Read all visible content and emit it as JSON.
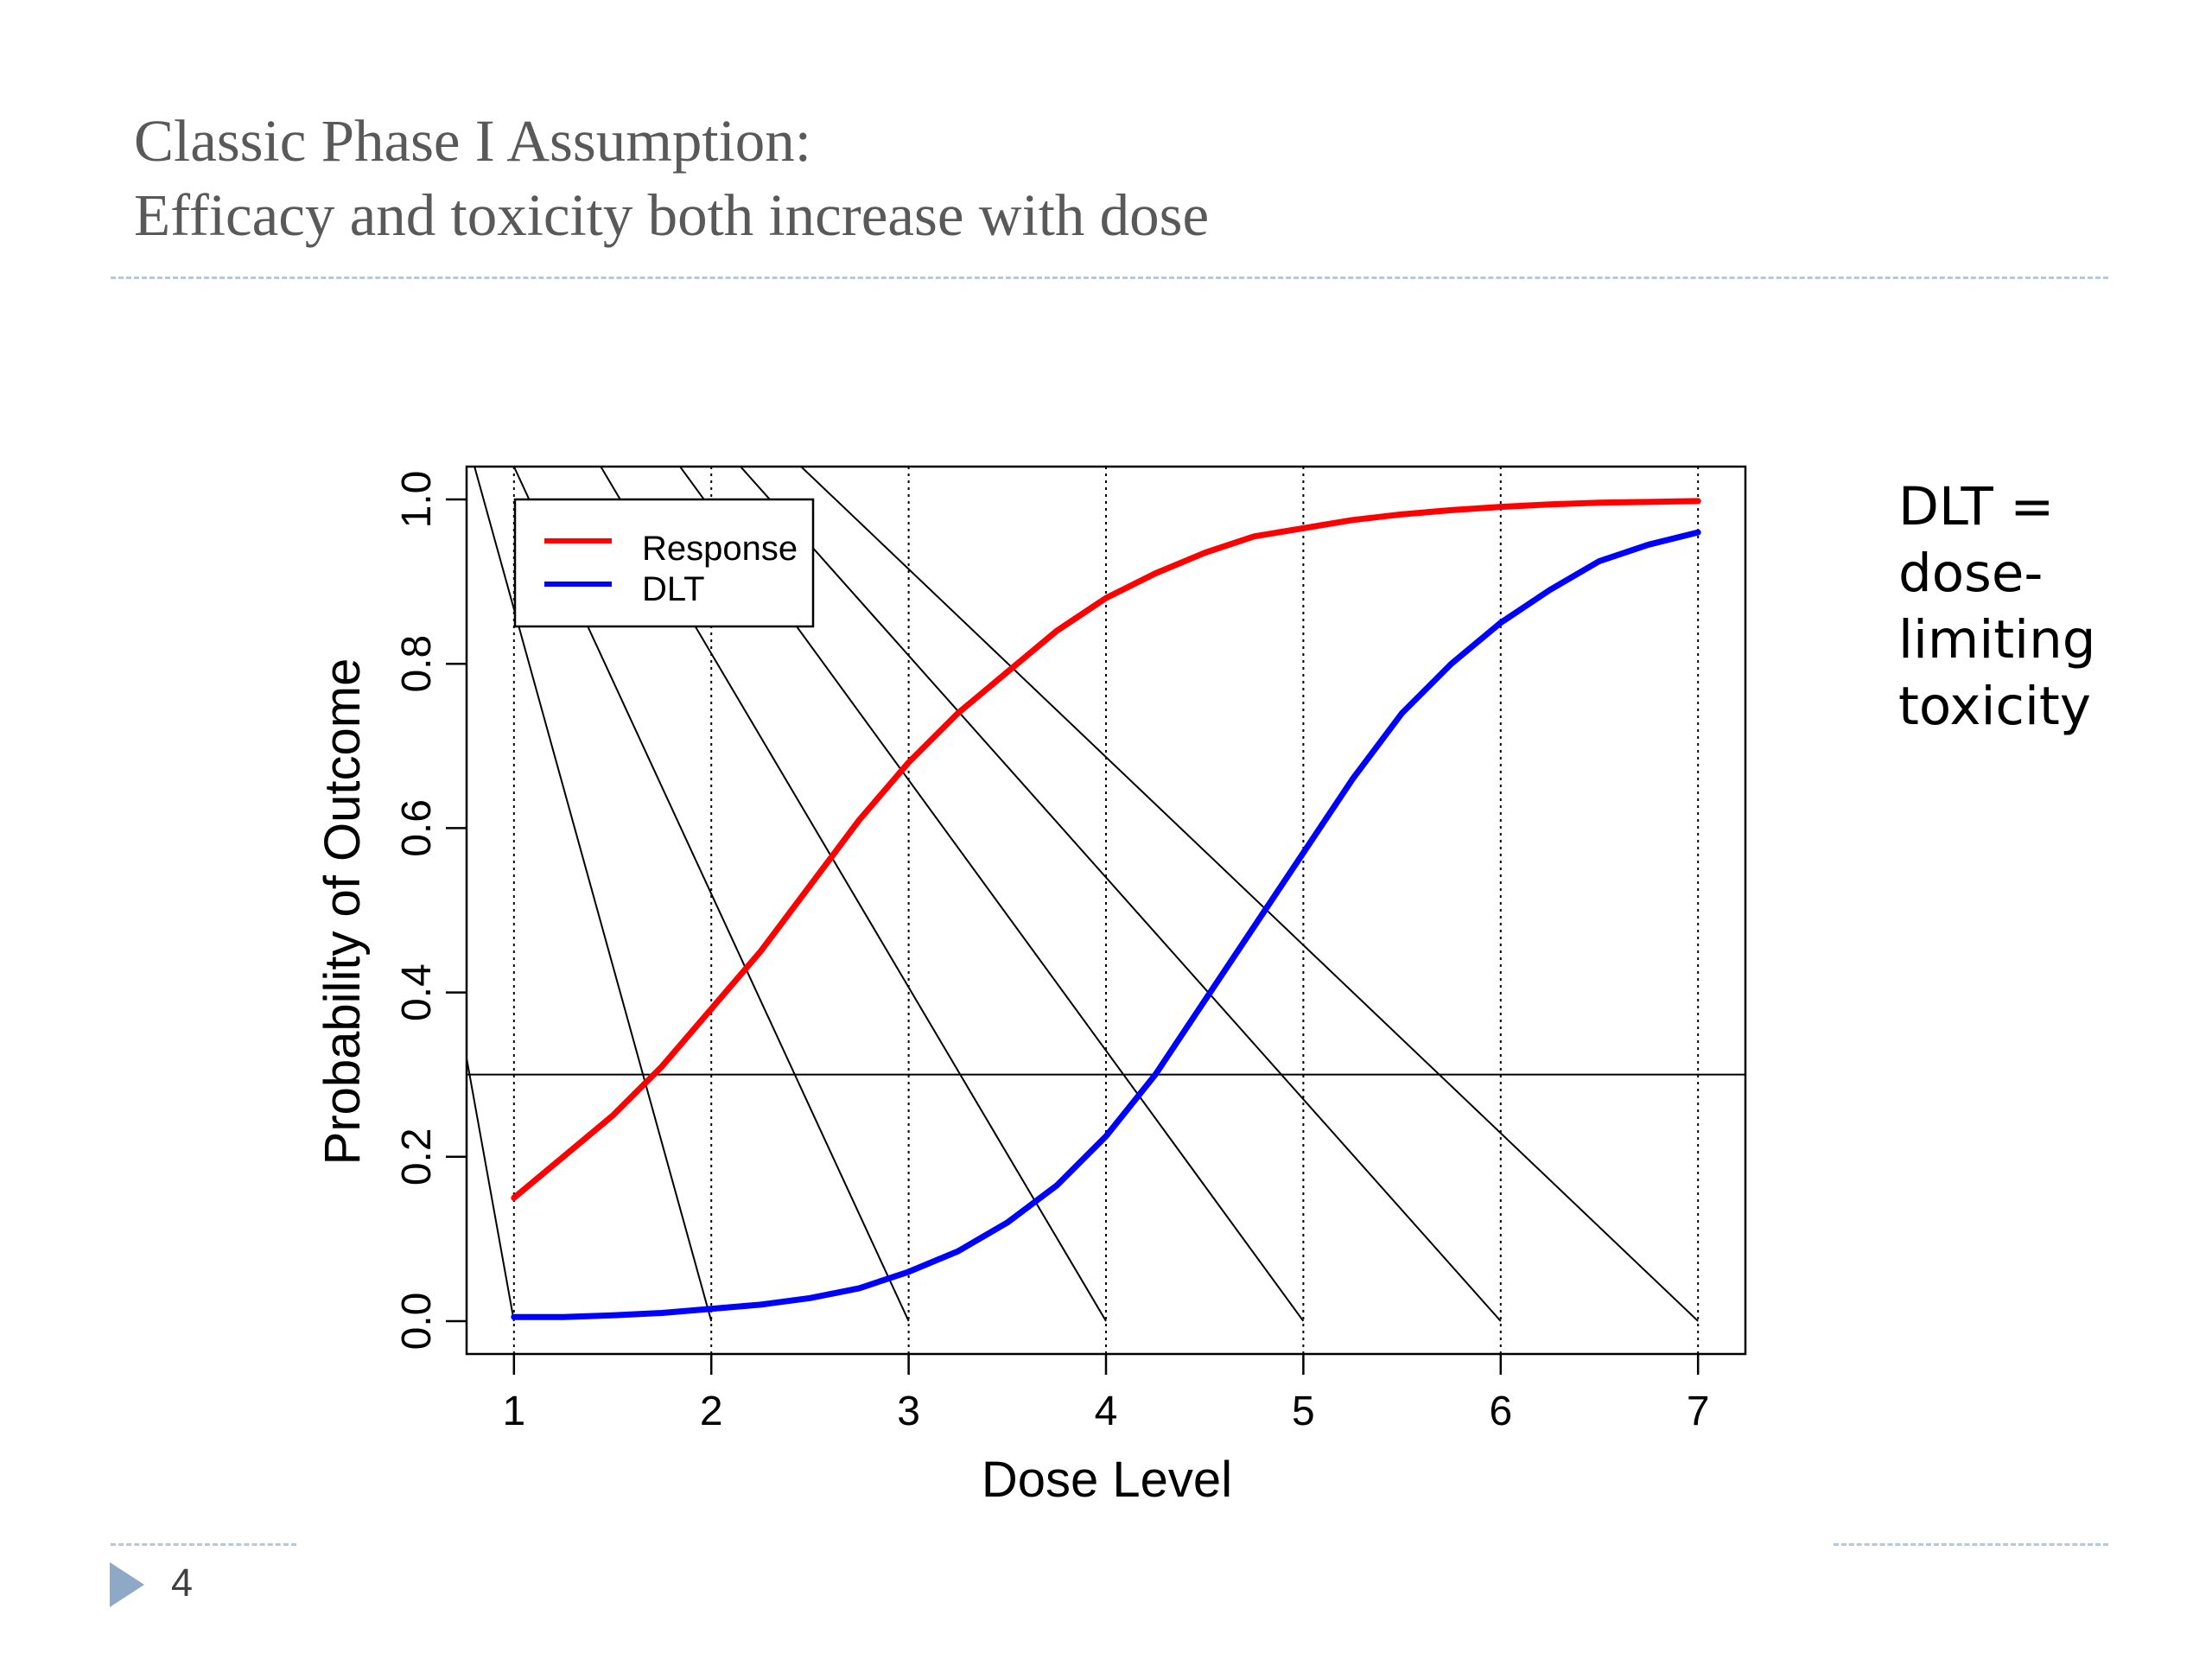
{
  "slide": {
    "title_line1": "Classic Phase I Assumption:",
    "title_line2": "Efficacy and toxicity both increase with dose",
    "note_lines": [
      "DLT =",
      "dose-",
      "limiting",
      "toxicity"
    ],
    "page_number": "4",
    "nav_icon": "triangle-right-icon"
  },
  "colors": {
    "title": "#595959",
    "rule": "#b9c7d6",
    "response": "#ff0000",
    "dlt": "#0000ff",
    "nav_icon": "#8ea9c8"
  },
  "chart_data": {
    "type": "line",
    "xlabel": "Dose Level",
    "ylabel": "Probability of Outcome",
    "xlim": [
      0.76,
      7.24
    ],
    "ylim": [
      -0.04,
      1.04
    ],
    "x_ticks": [
      "1",
      "2",
      "3",
      "4",
      "5",
      "6",
      "7"
    ],
    "y_ticks": [
      "0.0",
      "0.2",
      "0.4",
      "0.6",
      "0.8",
      "1.0"
    ],
    "vertical_dotted_lines_at": [
      1,
      2,
      3,
      4,
      5,
      6,
      7
    ],
    "threshold_line_y": 0.3,
    "legend": {
      "position": "top-left",
      "entries": [
        "Response",
        "DLT"
      ]
    },
    "series": [
      {
        "name": "Response",
        "color": "#ff0000",
        "x": [
          1,
          1.25,
          1.5,
          1.75,
          2,
          2.25,
          2.5,
          2.75,
          3,
          3.25,
          3.5,
          3.75,
          4,
          4.25,
          4.5,
          4.75,
          5,
          5.25,
          5.5,
          5.75,
          6,
          6.25,
          6.5,
          6.75,
          7
        ],
        "y": [
          0.15,
          0.2,
          0.25,
          0.31,
          0.38,
          0.45,
          0.53,
          0.61,
          0.68,
          0.74,
          0.79,
          0.84,
          0.88,
          0.91,
          0.935,
          0.955,
          0.965,
          0.975,
          0.982,
          0.987,
          0.991,
          0.994,
          0.996,
          0.997,
          0.998
        ]
      },
      {
        "name": "DLT",
        "color": "#0000ff",
        "x": [
          1,
          1.25,
          1.5,
          1.75,
          2,
          2.25,
          2.5,
          2.75,
          3,
          3.25,
          3.5,
          3.75,
          4,
          4.25,
          4.5,
          4.75,
          5,
          5.25,
          5.5,
          5.75,
          6,
          6.25,
          6.5,
          6.75,
          7
        ],
        "y": [
          0.005,
          0.005,
          0.007,
          0.01,
          0.015,
          0.02,
          0.028,
          0.04,
          0.06,
          0.085,
          0.12,
          0.165,
          0.225,
          0.3,
          0.39,
          0.48,
          0.57,
          0.66,
          0.74,
          0.8,
          0.85,
          0.89,
          0.925,
          0.945,
          0.96
        ]
      }
    ],
    "diagonal_lines": [
      {
        "x": [
          0.7,
          1.0
        ],
        "y": [
          0.4,
          0.0
        ]
      },
      {
        "x": [
          0.5,
          2.0
        ],
        "y": [
          1.3,
          0.0
        ]
      },
      {
        "x": [
          0.5,
          3.0
        ],
        "y": [
          1.3,
          0.0
        ]
      },
      {
        "x": [
          0.8,
          4.0
        ],
        "y": [
          1.3,
          0.0
        ]
      },
      {
        "x": [
          0.9,
          5.0
        ],
        "y": [
          1.35,
          0.0
        ]
      },
      {
        "x": [
          1.0,
          6.0
        ],
        "y": [
          1.35,
          0.0
        ]
      },
      {
        "x": [
          1.1,
          7.0
        ],
        "y": [
          1.35,
          0.0
        ]
      }
    ]
  }
}
